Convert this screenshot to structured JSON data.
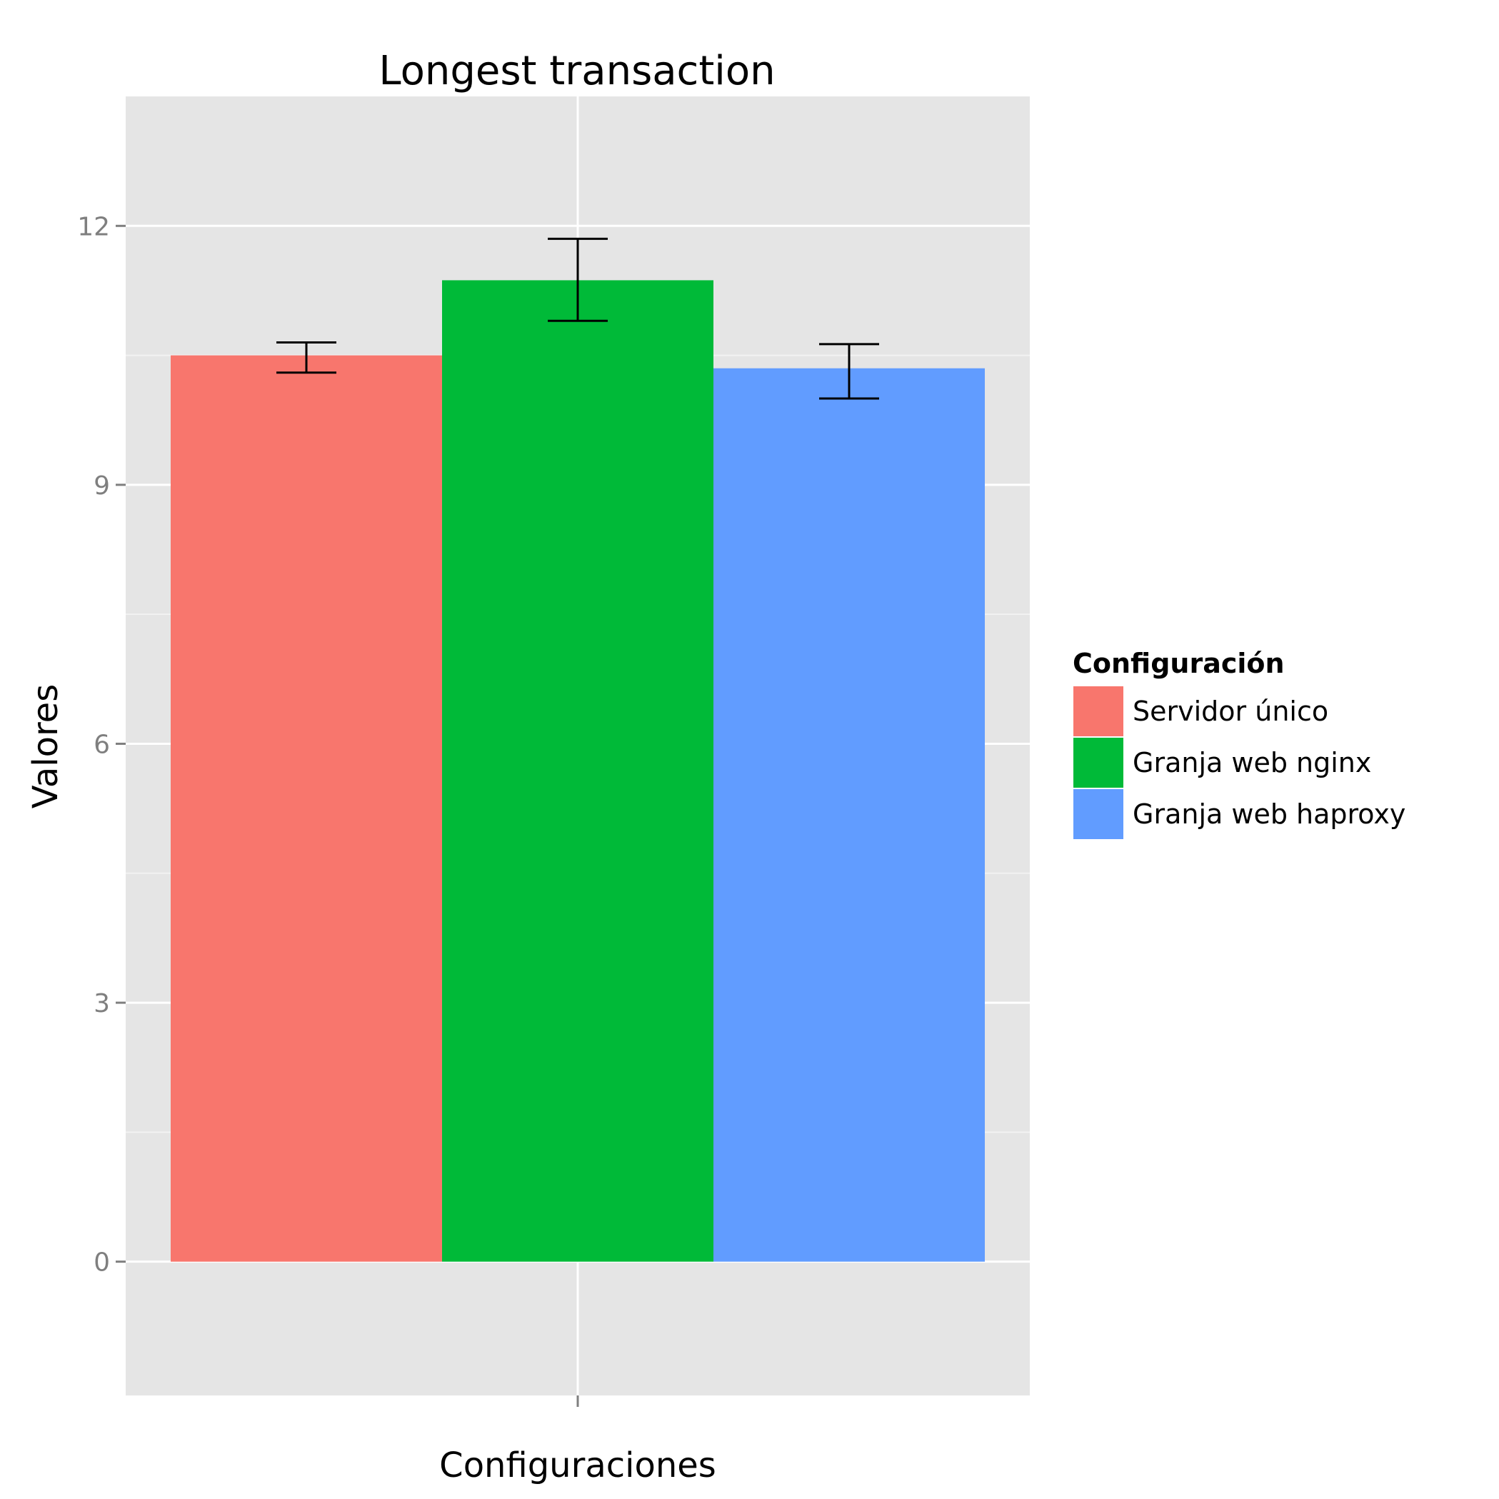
{
  "chart_data": {
    "type": "bar",
    "title": "Longest transaction",
    "xlabel": "Configuraciones",
    "ylabel": "Valores",
    "ylim": [
      -1.55,
      13.5
    ],
    "yticks": [
      0,
      3,
      6,
      9,
      12
    ],
    "ytick_labels": [
      "0",
      "3",
      "6",
      "9",
      "12"
    ],
    "grid": true,
    "legend": {
      "title": "Configuración",
      "position": "right"
    },
    "series": [
      {
        "name": "Servidor único",
        "value": 10.5,
        "error_low": 10.3,
        "error_high": 10.65,
        "color": "#F8766D"
      },
      {
        "name": "Granja web nginx",
        "value": 11.37,
        "error_low": 10.9,
        "error_high": 11.85,
        "color": "#00BA38"
      },
      {
        "name": "Granja web haproxy",
        "value": 10.35,
        "error_low": 10.0,
        "error_high": 10.63,
        "color": "#619CFF"
      }
    ],
    "colors": {
      "panel_background": "#E5E5E5",
      "grid_major": "#FFFFFF",
      "grid_minor": "#F2F2F2",
      "error_bar": "#000000"
    }
  }
}
